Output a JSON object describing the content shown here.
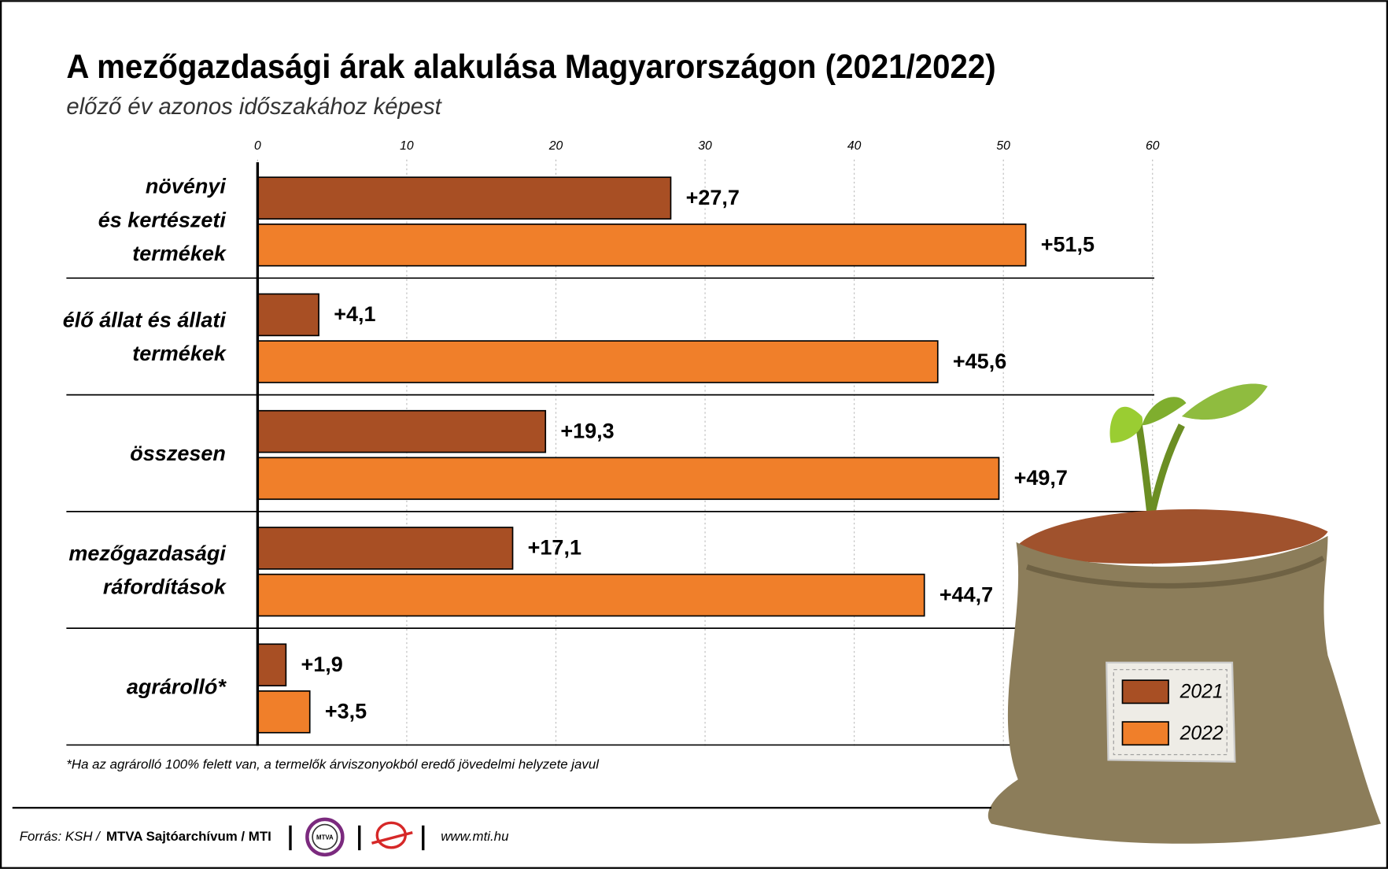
{
  "chart_data": {
    "type": "barh",
    "title": "A mezőgazdasági árak alakulása Magyarországon (2021/2022)",
    "subtitle": "előző év azonos időszakához képest",
    "categories": [
      "növényi\nés kertészeti\ntermékek",
      "élő állat és állati\ntermékek",
      "összesen",
      "mezőgazdasági\nráfordítások",
      "agrárolló*"
    ],
    "series": [
      {
        "name": "2021",
        "color": "#a84f24",
        "values": [
          27.7,
          4.1,
          19.3,
          17.1,
          1.9
        ],
        "value_labels": [
          "+27,7",
          "+4,1",
          "+19,3",
          "+17,1",
          "+1,9"
        ]
      },
      {
        "name": "2022",
        "color": "#f07f2a",
        "values": [
          51.5,
          45.6,
          49.7,
          44.7,
          3.5
        ],
        "value_labels": [
          "+51,5",
          "+45,6",
          "+49,7",
          "+44,7",
          "+3,5"
        ]
      }
    ],
    "xlim": [
      0,
      60
    ],
    "xticks": [
      0,
      10,
      20,
      30,
      40,
      50,
      60
    ],
    "grid": true,
    "footnote": "*Ha az agrárolló 100% felett van, a termelők árviszonyokból eredő jövedelmi helyzete javul",
    "source_label": "Forrás: KSH /",
    "source_credit": "MTVA Sajtóarchívum / MTI",
    "logo_text": "MTVA",
    "url": "www.mti.hu"
  }
}
